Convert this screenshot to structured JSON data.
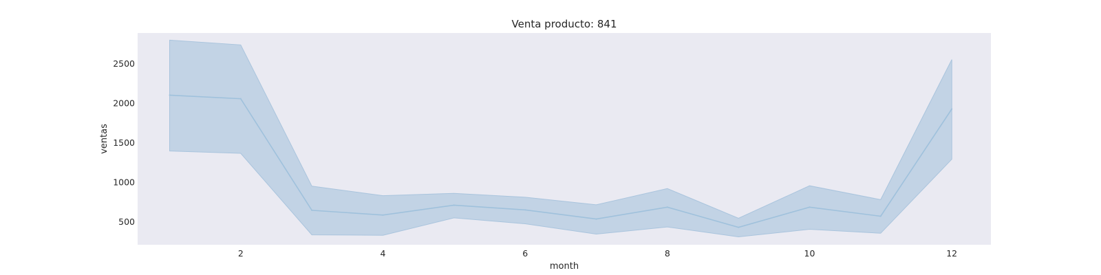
{
  "chart_data": {
    "type": "area",
    "title": "Venta producto: 841",
    "xlabel": "month",
    "ylabel": "ventas",
    "xlim": [
      0.55,
      12.55
    ],
    "ylim": [
      210,
      2885
    ],
    "x_ticks": [
      2,
      4,
      6,
      8,
      10,
      12
    ],
    "y_ticks": [
      500,
      1000,
      1500,
      2000,
      2500
    ],
    "grid": false,
    "legend": "none",
    "colors": {
      "background": "#eaeaf2",
      "line": "#9fc1dc",
      "band": "#c2d3e5",
      "band_edge": "#a9c4dd"
    },
    "x": [
      1,
      2,
      3,
      4,
      5,
      6,
      7,
      8,
      9,
      10,
      11,
      12
    ],
    "series": [
      {
        "values": [
          2100,
          2055,
          645,
          585,
          710,
          650,
          535,
          685,
          430,
          685,
          570,
          1925
        ],
        "lower": [
          1395,
          1365,
          335,
          330,
          550,
          475,
          345,
          435,
          310,
          405,
          355,
          1290
        ],
        "upper": [
          2795,
          2735,
          950,
          830,
          860,
          810,
          715,
          920,
          545,
          955,
          780,
          2550
        ]
      }
    ]
  }
}
